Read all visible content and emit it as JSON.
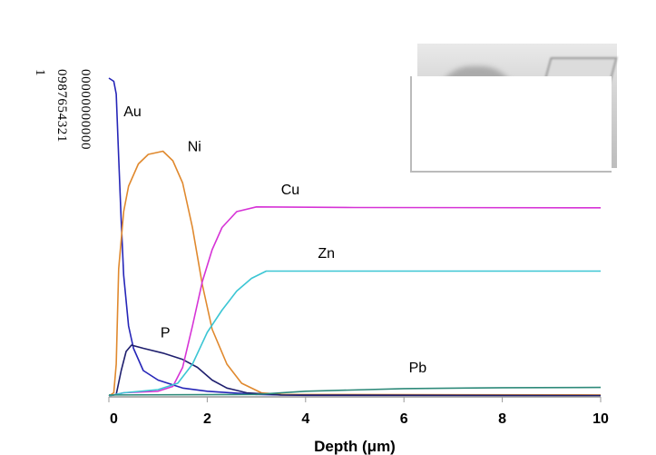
{
  "chart_data": {
    "type": "line",
    "title": "",
    "xlabel": "Depth (μm)",
    "ylabel": "",
    "xlim": [
      0,
      10
    ],
    "ylim": [
      0,
      100
    ],
    "xticks": [
      "0",
      "2",
      "4",
      "6",
      "8",
      "10"
    ],
    "yticks": [
      "100",
      "90",
      "80",
      "70",
      "60",
      "50",
      "40",
      "30",
      "20",
      "10",
      "0"
    ],
    "grid": false,
    "legend": "inline labels",
    "series": [
      {
        "name": "Au",
        "color": "#2626b8",
        "label_pos": [
          0.3,
          88
        ],
        "x": [
          0,
          0.1,
          0.15,
          0.2,
          0.25,
          0.3,
          0.4,
          0.5,
          0.7,
          1,
          1.5,
          2,
          3,
          4,
          10
        ],
        "y": [
          100,
          99,
          95,
          75,
          55,
          38,
          22,
          15,
          8,
          5,
          2.5,
          1.5,
          0.5,
          0.2,
          0.1
        ]
      },
      {
        "name": "Ni",
        "color": "#e0892e",
        "label_pos": [
          1.6,
          77
        ],
        "x": [
          0,
          0.1,
          0.15,
          0.2,
          0.3,
          0.4,
          0.6,
          0.8,
          1.1,
          1.3,
          1.5,
          1.7,
          1.9,
          2.1,
          2.4,
          2.7,
          3.1,
          3.5,
          10
        ],
        "y": [
          0,
          1,
          10,
          40,
          58,
          66,
          73,
          76,
          77,
          74,
          67,
          53,
          35,
          21,
          10,
          4,
          1,
          0.5,
          0.3
        ]
      },
      {
        "name": "P",
        "color": "#1f1f6e",
        "label_pos": [
          1.05,
          18.5
        ],
        "x": [
          0,
          0.15,
          0.25,
          0.35,
          0.46,
          0.7,
          1.1,
          1.5,
          1.8,
          2.1,
          2.4,
          2.8,
          3.5,
          10
        ],
        "y": [
          0,
          0.5,
          8,
          14,
          16,
          15,
          13.5,
          11.5,
          9,
          5,
          2.5,
          1,
          0.3,
          0.1
        ]
      },
      {
        "name": "Cu",
        "color": "#d633d6",
        "label_pos": [
          3.5,
          63.5
        ],
        "x": [
          0,
          0.3,
          1,
          1.3,
          1.5,
          1.7,
          1.9,
          2.1,
          2.3,
          2.6,
          3,
          5,
          10
        ],
        "y": [
          0,
          1,
          1.5,
          3,
          9,
          22,
          36,
          46,
          53,
          58,
          59.5,
          59.3,
          59.2
        ]
      },
      {
        "name": "Zn",
        "color": "#3cc6d4",
        "label_pos": [
          4.25,
          43.5
        ],
        "x": [
          0,
          0.3,
          1,
          1.4,
          1.7,
          2,
          2.3,
          2.6,
          2.9,
          3.2,
          10
        ],
        "y": [
          0,
          1,
          2,
          4,
          10,
          20,
          27,
          33,
          37,
          39.3,
          39.3
        ]
      },
      {
        "name": "Pb",
        "color": "#2e8a7a",
        "label_pos": [
          6.1,
          7.5
        ],
        "x": [
          0,
          3,
          4,
          6,
          8,
          10
        ],
        "y": [
          0.3,
          0.5,
          1.5,
          2.3,
          2.6,
          2.7
        ]
      }
    ]
  }
}
